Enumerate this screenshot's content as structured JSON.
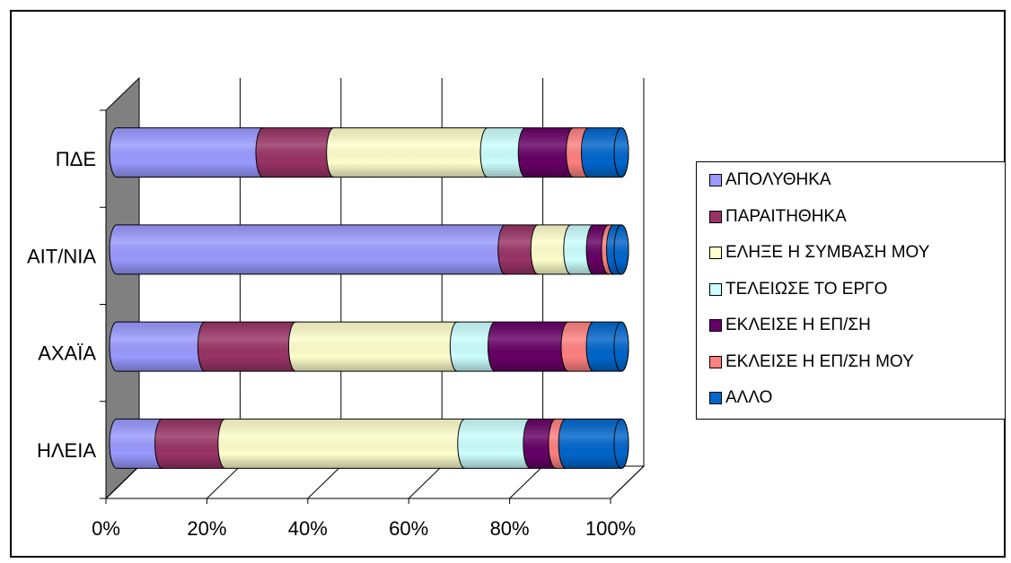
{
  "chart_data": {
    "type": "bar",
    "orientation": "horizontal",
    "stacking": "percent",
    "three_d": true,
    "categories": [
      "ΠΔΕ",
      "ΑΙΤ/ΝΙΑ",
      "ΑΧΑΪΑ",
      "ΗΛΕΙΑ"
    ],
    "series": [
      {
        "name": "ΑΠΟΛΥΘΗΚΑ",
        "color": "#9999FF",
        "values": [
          29,
          77,
          17.5,
          9
        ]
      },
      {
        "name": "ΠΑΡΑΙΤΗΘΗΚΑ",
        "color": "#993366",
        "values": [
          14,
          6.5,
          18,
          12.5
        ]
      },
      {
        "name": "ΕΛΗΞΕ Η ΣΥΜΒΑΣΗ ΜΟΥ",
        "color": "#FFFFCC",
        "values": [
          30.5,
          6.5,
          32,
          47.5
        ]
      },
      {
        "name": "ΤΕΛΕΙΩΣΕ ΤΟ ΕΡΓΟ",
        "color": "#CCFFFF",
        "values": [
          7.5,
          4.5,
          7.5,
          13
        ]
      },
      {
        "name": "ΕΚΛΕΙΣΕ Η ΕΠ/ΣΗ",
        "color": "#660066",
        "values": [
          9.5,
          3,
          14.5,
          5
        ]
      },
      {
        "name": "ΕΚΛΕΙΣΕ Η ΕΠ/ΣΗ ΜΟΥ",
        "color": "#FF8080",
        "values": [
          3,
          1,
          5,
          2
        ]
      },
      {
        "name": "ΑΛΛΟ",
        "color": "#0066CC",
        "values": [
          6.5,
          1.5,
          5.5,
          11
        ]
      }
    ],
    "xticks": [
      "0%",
      "20%",
      "40%",
      "60%",
      "80%",
      "100%"
    ],
    "xlim": [
      0,
      100
    ],
    "title": "",
    "xlabel": "",
    "ylabel": "",
    "grid": true,
    "legend_position": "right"
  }
}
